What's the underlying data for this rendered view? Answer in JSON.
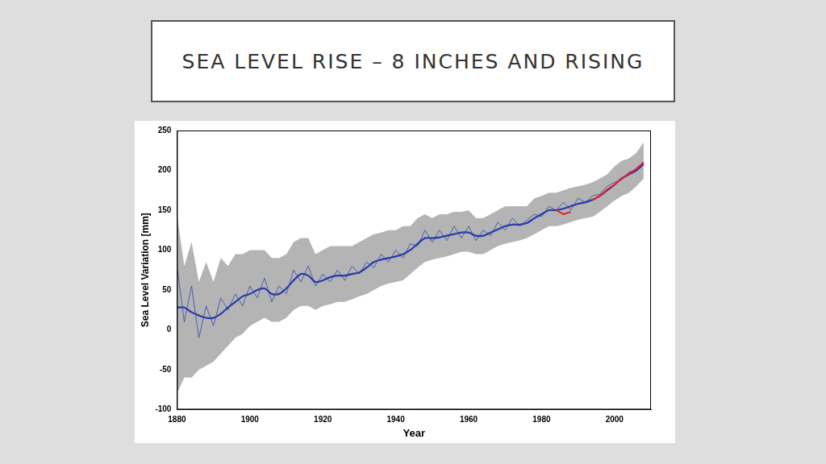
{
  "chart_data": {
    "type": "line",
    "title": "SEA LEVEL RISE – 8 INCHES AND RISING",
    "x_label": "Year",
    "y_label": "Sea Level Variation [mm]",
    "x": [
      1880,
      1882,
      1884,
      1886,
      1888,
      1890,
      1892,
      1894,
      1896,
      1898,
      1900,
      1902,
      1904,
      1906,
      1908,
      1910,
      1912,
      1914,
      1916,
      1918,
      1920,
      1922,
      1924,
      1926,
      1928,
      1930,
      1932,
      1934,
      1936,
      1938,
      1940,
      1942,
      1944,
      1946,
      1948,
      1950,
      1952,
      1954,
      1956,
      1958,
      1960,
      1962,
      1964,
      1966,
      1968,
      1970,
      1972,
      1974,
      1976,
      1978,
      1980,
      1982,
      1984,
      1986,
      1988,
      1990,
      1992,
      1994,
      1996,
      1998,
      2000,
      2002,
      2004,
      2006,
      2008
    ],
    "series": [
      {
        "color": "#3a4fb0",
        "values": [
          80,
          10,
          55,
          -10,
          30,
          5,
          40,
          25,
          45,
          30,
          55,
          40,
          65,
          35,
          55,
          45,
          75,
          60,
          80,
          55,
          70,
          60,
          75,
          62,
          80,
          70,
          85,
          78,
          95,
          85,
          100,
          90,
          108,
          105,
          125,
          110,
          125,
          112,
          130,
          115,
          130,
          112,
          125,
          118,
          135,
          125,
          140,
          130,
          138,
          145,
          142,
          155,
          150,
          160,
          150,
          165,
          160,
          168,
          170,
          180,
          185,
          188,
          198,
          200,
          210
        ]
      },
      {
        "color": "#2a3aa8",
        "values": [
          28,
          28,
          22,
          18,
          15,
          15,
          20,
          28,
          35,
          42,
          45,
          50,
          52,
          45,
          45,
          52,
          62,
          70,
          68,
          60,
          62,
          66,
          68,
          68,
          70,
          72,
          78,
          85,
          88,
          90,
          92,
          95,
          100,
          108,
          115,
          115,
          116,
          118,
          120,
          122,
          122,
          118,
          118,
          122,
          126,
          130,
          132,
          132,
          134,
          140,
          145,
          150,
          150,
          152,
          155,
          158,
          160,
          163,
          168,
          175,
          182,
          190,
          195,
          200,
          208
        ]
      },
      {
        "color": "#e8202a",
        "values": [
          null,
          null,
          null,
          null,
          null,
          null,
          null,
          null,
          null,
          null,
          null,
          null,
          null,
          null,
          null,
          null,
          null,
          null,
          null,
          null,
          null,
          null,
          null,
          null,
          null,
          null,
          null,
          null,
          null,
          null,
          null,
          null,
          null,
          null,
          null,
          null,
          null,
          null,
          null,
          null,
          null,
          null,
          null,
          null,
          null,
          null,
          null,
          null,
          null,
          null,
          null,
          null,
          150,
          145,
          148,
          null,
          null,
          163,
          168,
          176,
          182,
          190,
          196,
          202,
          210
        ]
      }
    ],
    "band": {
      "color": "#b4b4b4",
      "upper": [
        145,
        80,
        110,
        60,
        85,
        60,
        90,
        80,
        95,
        95,
        100,
        100,
        100,
        90,
        90,
        95,
        110,
        115,
        115,
        95,
        100,
        105,
        105,
        105,
        105,
        110,
        115,
        120,
        122,
        125,
        125,
        130,
        130,
        140,
        145,
        140,
        145,
        145,
        148,
        148,
        150,
        140,
        140,
        145,
        150,
        155,
        155,
        155,
        155,
        165,
        168,
        172,
        172,
        175,
        178,
        180,
        182,
        185,
        190,
        195,
        205,
        212,
        215,
        222,
        235
      ],
      "lower": [
        -80,
        -60,
        -60,
        -50,
        -45,
        -40,
        -30,
        -20,
        -10,
        -5,
        5,
        10,
        15,
        10,
        10,
        15,
        25,
        30,
        30,
        25,
        30,
        32,
        35,
        35,
        38,
        42,
        45,
        50,
        55,
        58,
        60,
        62,
        70,
        78,
        85,
        88,
        90,
        92,
        95,
        98,
        98,
        95,
        95,
        100,
        105,
        108,
        110,
        112,
        115,
        120,
        125,
        130,
        130,
        132,
        135,
        138,
        140,
        142,
        148,
        155,
        162,
        168,
        172,
        180,
        190
      ]
    },
    "xlim": [
      1880,
      2010
    ],
    "xticks": [
      1880,
      1900,
      1920,
      1940,
      1960,
      1980,
      2000
    ],
    "ylim": [
      -100,
      250
    ],
    "yticks": [
      -100,
      -50,
      0,
      50,
      100,
      150,
      200,
      250
    ],
    "grid": false
  }
}
